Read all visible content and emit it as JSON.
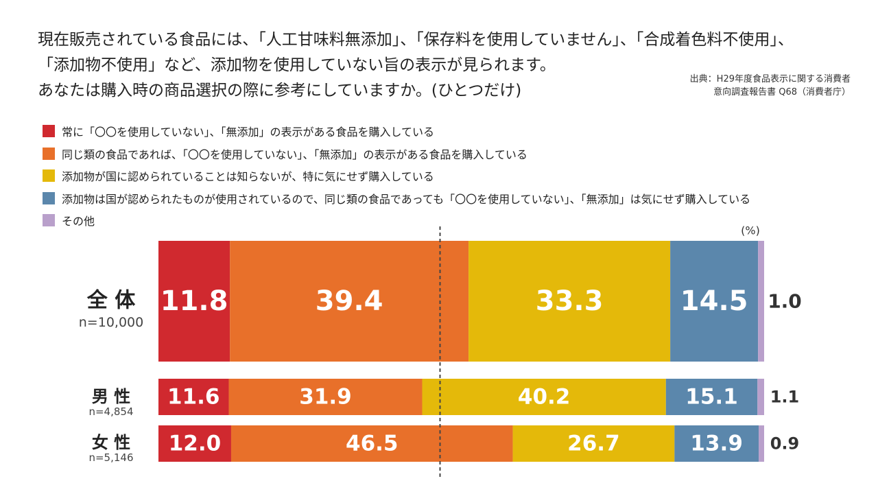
{
  "question": {
    "line1": "現在販売されている食品には、「人工甘味料無添加」、「保存料を使用していません」、「合成着色料不使用」、",
    "line2": "「添加物不使用」など、添加物を使用していない旨の表示が見られます。",
    "line3": "あなたは購入時の商品選択の際に参考にしていますか。(ひとつだけ)"
  },
  "source": {
    "line1": "出典：H29年度食品表示に関する消費者",
    "line2": "意向調査報告書 Q68（消費者庁）"
  },
  "colors": {
    "red": "#d0292f",
    "orange": "#e8702a",
    "yellow": "#e4b90a",
    "blue": "#5b87ac",
    "purple": "#b9a0cb"
  },
  "chart_data": {
    "type": "bar",
    "orientation": "horizontal-stacked-100",
    "unit": "(%)",
    "xlim": [
      0,
      100
    ],
    "categories": [
      {
        "label": "全 体",
        "sample": "n=10,000"
      },
      {
        "label": "男 性",
        "sample": "n=4,854"
      },
      {
        "label": "女 性",
        "sample": "n=5,146"
      }
    ],
    "series": [
      {
        "name": "常に「〇〇を使用していない」、「無添加」の表示がある食品を購入している",
        "color": "#d0292f",
        "values": [
          11.8,
          11.6,
          12.0
        ],
        "labels": [
          "11.8",
          "11.6",
          "12.0"
        ]
      },
      {
        "name": "同じ類の食品であれば、「〇〇を使用していない」、「無添加」の表示がある食品を購入している",
        "color": "#e8702a",
        "values": [
          39.4,
          31.9,
          46.5
        ],
        "labels": [
          "39.4",
          "31.9",
          "46.5"
        ]
      },
      {
        "name": "添加物が国に認められていることは知らないが、特に気にせず購入している",
        "color": "#e4b90a",
        "values": [
          33.3,
          40.2,
          26.7
        ],
        "labels": [
          "33.3",
          "40.2",
          "26.7"
        ]
      },
      {
        "name": "添加物は国が認められたものが使用されているので、同じ類の食品であっても「〇〇を使用していない」、「無添加」は気にせず購入している",
        "color": "#5b87ac",
        "values": [
          14.5,
          15.1,
          13.9
        ],
        "labels": [
          "14.5",
          "15.1",
          "13.9"
        ]
      },
      {
        "name": "その他",
        "color": "#b9a0cb",
        "values": [
          1.0,
          1.1,
          0.9
        ],
        "labels": [
          "1.0",
          "1.1",
          "0.9"
        ]
      }
    ],
    "reference_line": 50
  }
}
